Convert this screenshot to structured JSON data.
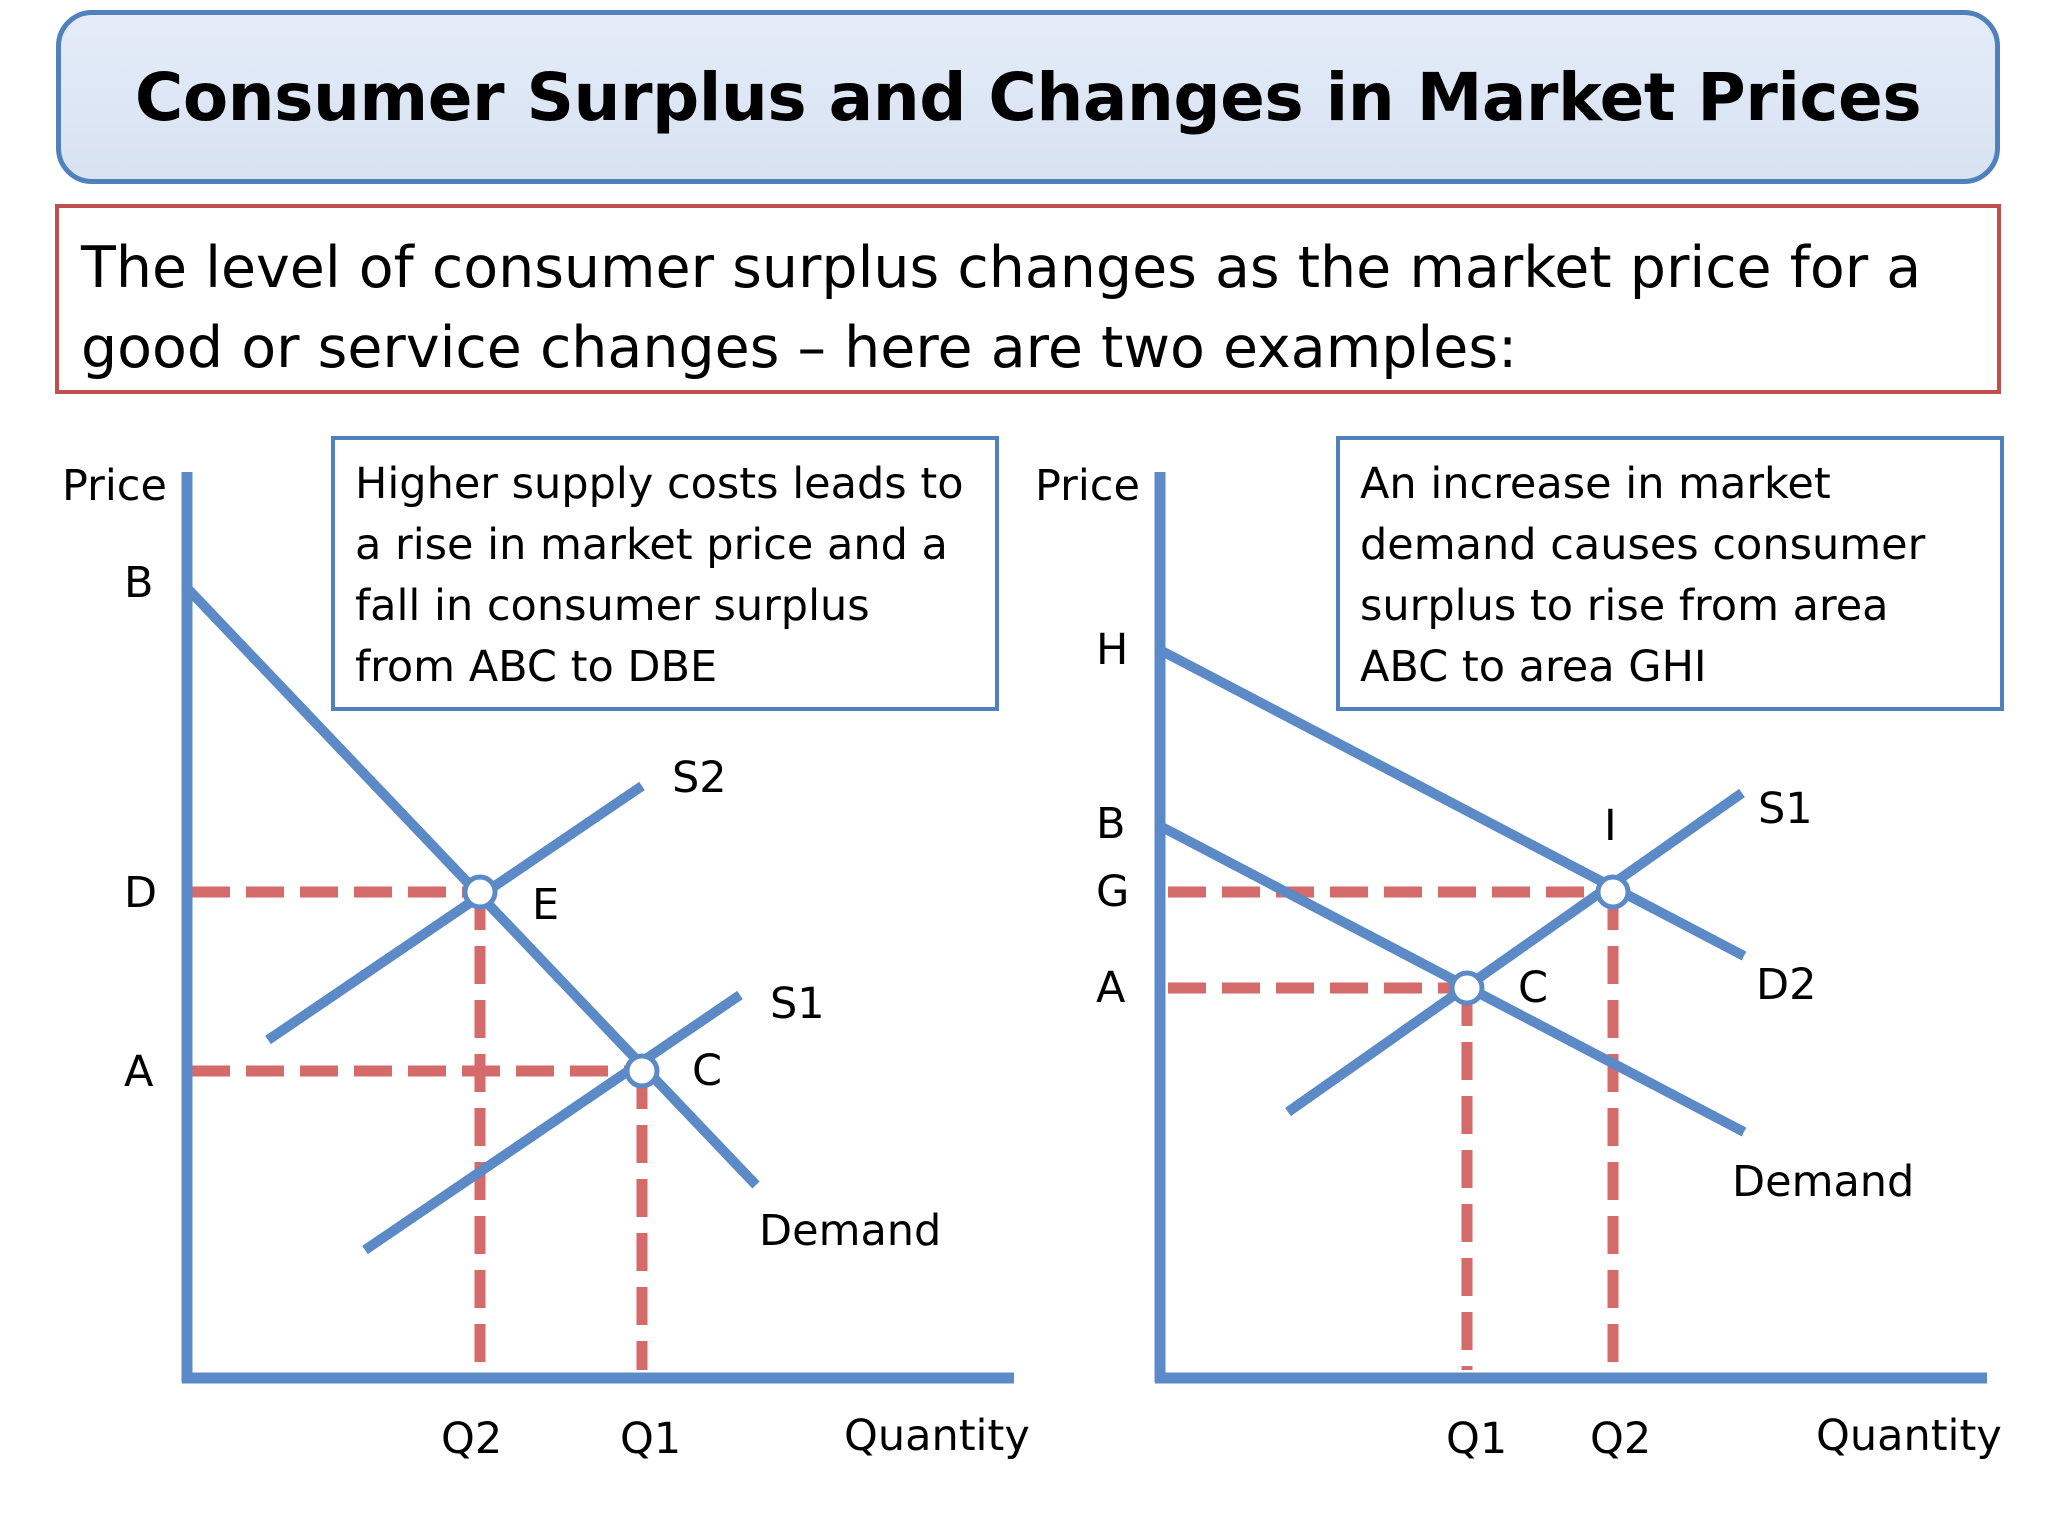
{
  "title": "Consumer Surplus and Changes in Market Prices",
  "intro": {
    "line1": "The level of consumer surplus changes as the market price for a",
    "line2": "good or service changes – here are two examples:"
  },
  "left_panel": {
    "y_axis_label": "Price",
    "x_axis_label": "Quantity",
    "callout": "Higher supply costs leads to a rise in market price and a fall in consumer surplus from ABC to DBE",
    "price_labels": {
      "B": "B",
      "D": "D",
      "A": "A"
    },
    "quantity_labels": {
      "Q2": "Q2",
      "Q1": "Q1"
    },
    "point_labels": {
      "E": "E",
      "C": "C"
    },
    "curve_labels": {
      "S2": "S2",
      "S1": "S1",
      "demand": "Demand"
    }
  },
  "right_panel": {
    "y_axis_label": "Price",
    "x_axis_label": "Quantity",
    "callout": "An increase in market demand causes consumer surplus to rise from area ABC to area GHI",
    "price_labels": {
      "H": "H",
      "B": "B",
      "G": "G",
      "A": "A"
    },
    "quantity_labels": {
      "Q1": "Q1",
      "Q2": "Q2"
    },
    "point_labels": {
      "I": "I",
      "C": "C"
    },
    "curve_labels": {
      "S1": "S1",
      "D2": "D2",
      "demand": "Demand"
    }
  },
  "colors": {
    "curve": "#5b8ac7",
    "dashed": "#d46a6a",
    "title_border": "#4f81bd",
    "intro_border": "#c0504d"
  }
}
